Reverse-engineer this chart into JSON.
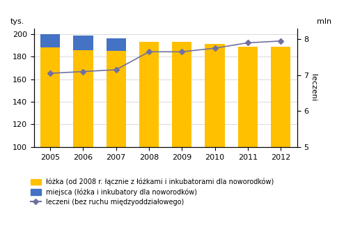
{
  "years": [
    2005,
    2006,
    2007,
    2008,
    2009,
    2010,
    2011,
    2012
  ],
  "lozka": [
    188,
    186,
    185,
    193,
    193,
    191,
    189,
    189
  ],
  "miejsca": [
    12,
    13,
    11,
    0,
    0,
    0,
    0,
    0
  ],
  "leczeni": [
    7.05,
    7.1,
    7.15,
    7.65,
    7.65,
    7.75,
    7.9,
    7.95
  ],
  "bar_color_lozka": "#FFC000",
  "bar_color_miejsca": "#4472C4",
  "line_color": "#7070A0",
  "ylabel_left": "tys.",
  "ylabel_right": "mln",
  "ylabel_right_rot": "leczeni",
  "ylim_left": [
    100,
    205
  ],
  "ylim_right": [
    5,
    8.3
  ],
  "yticks_left": [
    100,
    120,
    140,
    160,
    180,
    200
  ],
  "yticks_right": [
    5,
    6,
    7,
    8
  ],
  "legend_lozka": "łóżka (od 2008 r. łącznie z łóżkami i inkubatorami dla noworodków)",
  "legend_miejsca": "miejsca (łóżka i inkubatory dla noworodków)",
  "legend_leczeni": "leczeni (bez ruchu międzyoddziałowego)",
  "background_color": "#FFFFFF"
}
